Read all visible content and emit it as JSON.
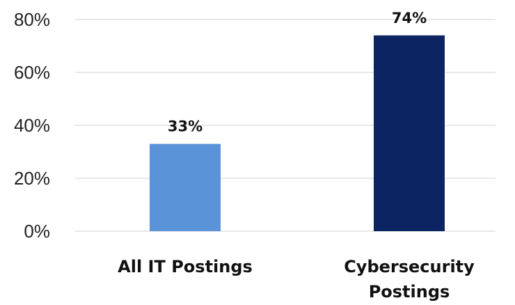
{
  "chart_data": {
    "type": "bar",
    "categories": [
      [
        "All IT Postings"
      ],
      [
        "Cybersecurity",
        "Postings"
      ]
    ],
    "values": [
      33,
      74
    ],
    "data_labels": [
      "33%",
      "74%"
    ],
    "colors": [
      "#5b93d8",
      "#0c2461"
    ],
    "ylim": [
      0,
      80
    ],
    "yticks": [
      0,
      20,
      40,
      60,
      80
    ],
    "ytick_labels": [
      "0%",
      "20%",
      "40%",
      "60%",
      "80%"
    ],
    "grid": true,
    "title": "",
    "xlabel": "",
    "ylabel": ""
  }
}
